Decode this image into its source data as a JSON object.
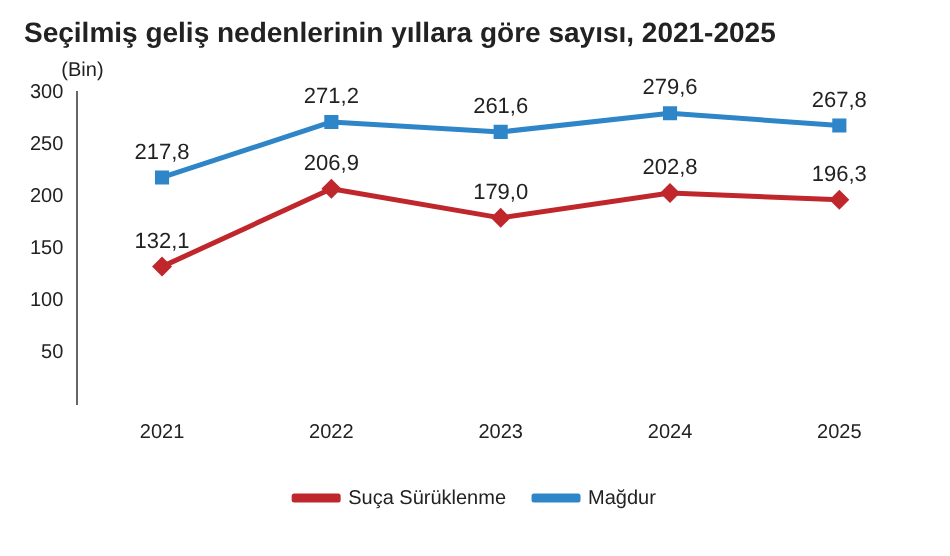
{
  "chart_data": {
    "type": "line",
    "title": "Seçilmiş geliş nedenlerinin yıllara göre sayısı, 2021-2025",
    "ylabel": "(Bin)",
    "categories": [
      "2021",
      "2022",
      "2023",
      "2024",
      "2025"
    ],
    "series": [
      {
        "name": "Suça Sürüklenme",
        "color": "#c0272d",
        "marker": "diamond",
        "values": [
          132.1,
          206.9,
          179.0,
          202.8,
          196.3
        ],
        "value_labels": [
          "132,1",
          "206,9",
          "179,0",
          "202,8",
          "196,3"
        ]
      },
      {
        "name": "Mağdur",
        "color": "#2e86c8",
        "marker": "square",
        "values": [
          217.8,
          271.2,
          261.6,
          279.6,
          267.8
        ],
        "value_labels": [
          "217,8",
          "271,2",
          "261,6",
          "279,6",
          "267,8"
        ]
      }
    ],
    "ylim": [
      0,
      300
    ],
    "yticks": [
      50,
      100,
      150,
      200,
      250,
      300
    ],
    "grid": false,
    "legend": "bottom",
    "line_style": "solid"
  }
}
